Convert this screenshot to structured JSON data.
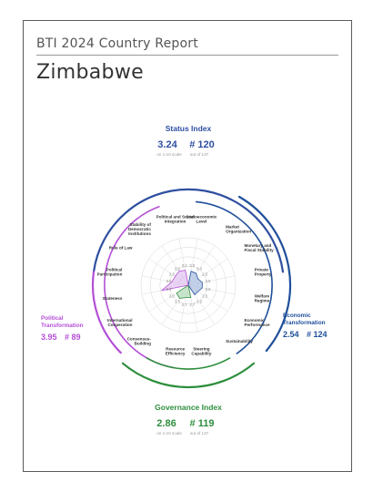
{
  "report_title": "BTI 2024 Country Report",
  "country": "Zimbabwe",
  "status_index": {
    "title": "Status Index",
    "score": "3.24",
    "rank": "# 120",
    "scale_note": "on 1-10 scale",
    "rank_note": "out of 137"
  },
  "governance_index": {
    "title": "Governance Index",
    "score": "2.86",
    "rank": "# 119",
    "scale_note": "on 1-10 scale",
    "rank_note": "out of 137"
  },
  "political_transformation": {
    "line1": "Political",
    "line2": "Transformation",
    "score": "3.95",
    "rank": "# 89"
  },
  "economic_transformation": {
    "line1": "Economic",
    "line2": "Transformation",
    "score": "2.54",
    "rank": "# 124"
  },
  "colors": {
    "status": "#2e4fa0",
    "political": "#b44fd6",
    "economic": "#1f4f9a",
    "governance": "#2e8f3e"
  },
  "chart_data": {
    "type": "radar",
    "scale": [
      1,
      10
    ],
    "criteria": [
      {
        "name": "Socioeconomic\nLevel",
        "value": 3.0,
        "group": "economic"
      },
      {
        "name": "Market\nOrganization",
        "value": 3.0,
        "group": "economic"
      },
      {
        "name": "Monetary and\nFiscal Stability",
        "value": 2.5,
        "group": "economic"
      },
      {
        "name": "Private\nProperty",
        "value": 3.0,
        "group": "economic"
      },
      {
        "name": "Welfare\nRegime",
        "value": 3.0,
        "group": "economic"
      },
      {
        "name": "Economic\nPerformance",
        "value": 2.5,
        "group": "economic"
      },
      {
        "name": "Sustainability",
        "value": 2.5,
        "group": "economic"
      },
      {
        "name": "Steering\nCapability",
        "value": 2.7,
        "group": "governance"
      },
      {
        "name": "Resource\nEfficiency",
        "value": 2.7,
        "group": "governance"
      },
      {
        "name": "Consensus-\nBuilding",
        "value": 3.3,
        "group": "governance"
      },
      {
        "name": "International\nCooperation",
        "value": 3.0,
        "group": "governance"
      },
      {
        "name": "Stateness",
        "value": 5.5,
        "group": "political"
      },
      {
        "name": "Political\nParticipation",
        "value": 3.5,
        "group": "political"
      },
      {
        "name": "Rule of Law",
        "value": 3.3,
        "group": "political"
      },
      {
        "name": "Stability of\nDemocratic\nInstitutions",
        "value": 3.5,
        "group": "political"
      },
      {
        "name": "Political and Social\nIntegration",
        "value": 3.2,
        "group": "political"
      }
    ]
  }
}
